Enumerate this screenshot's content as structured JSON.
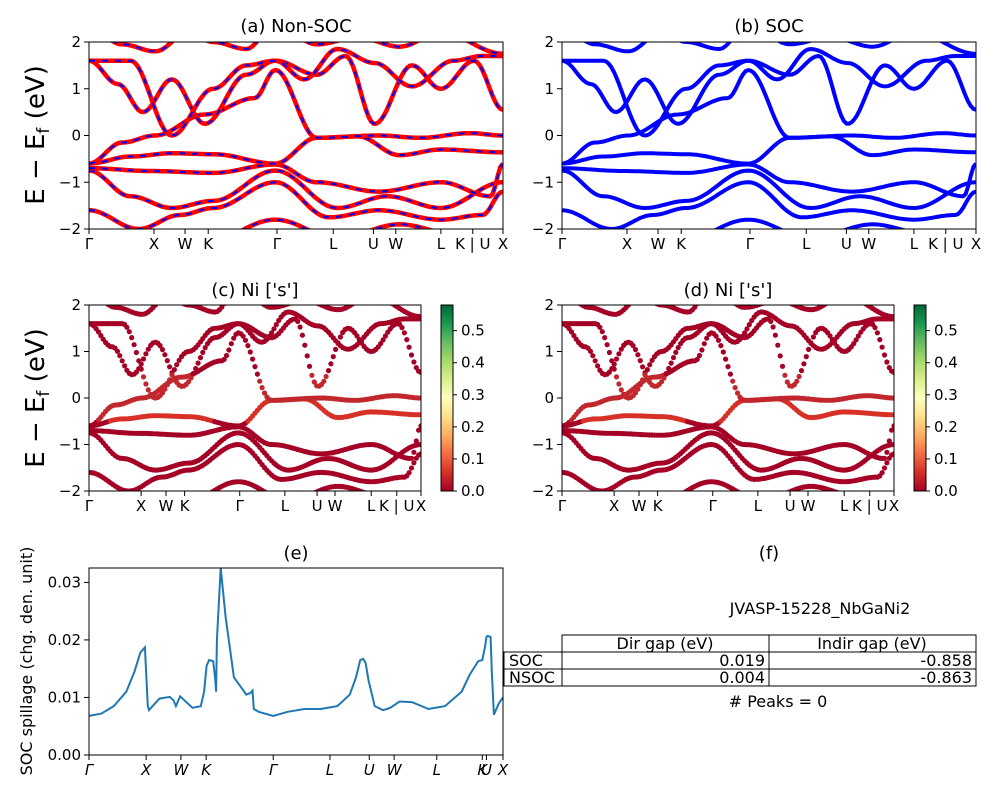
{
  "figure_id": "JVASP-15228_NbGaNi2",
  "chart_data": [
    {
      "type": "line",
      "title": "(a) Non-SOC",
      "ylabel": "$E - E_f$ (eV)",
      "ylim": [
        -2,
        2
      ],
      "yticks": [
        -2,
        -1,
        0,
        1,
        2
      ],
      "kpath": [
        "Γ",
        "X",
        "W",
        "K",
        "Γ",
        "L",
        "U",
        "W",
        "L",
        "K | U",
        "X"
      ],
      "kpos": [
        0,
        0.157,
        0.232,
        0.288,
        0.454,
        0.59,
        0.687,
        0.741,
        0.85,
        0.927,
        1.0
      ],
      "series": [
        {
          "name": "bands (red)",
          "color": "#ff0000"
        },
        {
          "name": "bands overlay (blue dashed)",
          "color": "#0000ff"
        }
      ]
    },
    {
      "type": "line",
      "title": "(b) SOC",
      "ylim": [
        -2,
        2
      ],
      "yticks": [
        -2,
        -1,
        0,
        1,
        2
      ],
      "kpath": [
        "Γ",
        "X",
        "W",
        "K",
        "Γ",
        "L",
        "U",
        "W",
        "L",
        "K | U",
        "X"
      ],
      "kpos": [
        0,
        0.157,
        0.232,
        0.288,
        0.454,
        0.59,
        0.687,
        0.741,
        0.85,
        0.927,
        1.0
      ],
      "series": [
        {
          "name": "bands",
          "color": "#0000ff"
        }
      ]
    },
    {
      "type": "scatter",
      "title": "(c)  Ni ['s']",
      "ylabel": "$E - E_f$ (eV)",
      "ylim": [
        -2,
        2
      ],
      "yticks": [
        -2,
        -1,
        0,
        1,
        2
      ],
      "kpath": [
        "Γ",
        "X",
        "W",
        "K",
        "Γ",
        "L",
        "U",
        "W",
        "L",
        "K | U",
        "X"
      ],
      "kpos": [
        0,
        0.157,
        0.232,
        0.288,
        0.454,
        0.59,
        0.687,
        0.741,
        0.85,
        0.927,
        1.0
      ],
      "colorbar": {
        "ticks": [
          "0.0",
          "0.1",
          "0.2",
          "0.3",
          "0.4",
          "0.5"
        ],
        "max": 0.58,
        "colors": [
          "#a50026",
          "#d73027",
          "#f46d43",
          "#fdae61",
          "#fee08b",
          "#ffffbf",
          "#d9ef8b",
          "#a6d96a",
          "#66bd63",
          "#1a9850",
          "#006837"
        ]
      }
    },
    {
      "type": "scatter",
      "title": "(d) Ni ['s']",
      "ylim": [
        -2,
        2
      ],
      "yticks": [
        -2,
        -1,
        0,
        1,
        2
      ],
      "kpath": [
        "Γ",
        "X",
        "W",
        "K",
        "Γ",
        "L",
        "U",
        "W",
        "L",
        "K | U",
        "X"
      ],
      "kpos": [
        0,
        0.157,
        0.232,
        0.288,
        0.454,
        0.59,
        0.687,
        0.741,
        0.85,
        0.927,
        1.0
      ],
      "colorbar": {
        "ticks": [
          "0.0",
          "0.1",
          "0.2",
          "0.3",
          "0.4",
          "0.5"
        ],
        "max": 0.58,
        "colors": [
          "#a50026",
          "#d73027",
          "#f46d43",
          "#fdae61",
          "#fee08b",
          "#ffffbf",
          "#d9ef8b",
          "#a6d96a",
          "#66bd63",
          "#1a9850",
          "#006837"
        ]
      }
    },
    {
      "type": "line",
      "title": "(e)",
      "ylabel": "SOC spillage (chg. den. unit)",
      "ylim": [
        0,
        0.0325
      ],
      "yticks": [
        "0.00",
        "0.01",
        "0.02",
        "0.03"
      ],
      "ytick_values": [
        0,
        0.01,
        0.02,
        0.03
      ],
      "kpath": [
        "Γ",
        "X",
        "W",
        "K",
        "Γ",
        "L",
        "U",
        "W",
        "L",
        "K",
        "U",
        "X"
      ],
      "kpos": [
        0,
        0.138,
        0.222,
        0.283,
        0.445,
        0.582,
        0.677,
        0.737,
        0.84,
        0.95,
        0.96,
        1.0
      ],
      "series": [
        {
          "name": "spillage",
          "color": "#1f77b4",
          "x": [
            0,
            0.03,
            0.06,
            0.09,
            0.11,
            0.124,
            0.135,
            0.142,
            0.145,
            0.17,
            0.195,
            0.204,
            0.21,
            0.22,
            0.25,
            0.27,
            0.278,
            0.284,
            0.29,
            0.3,
            0.305,
            0.307,
            0.309,
            0.318,
            0.33,
            0.35,
            0.38,
            0.39,
            0.395,
            0.398,
            0.41,
            0.445,
            0.48,
            0.52,
            0.56,
            0.6,
            0.63,
            0.645,
            0.655,
            0.662,
            0.668,
            0.675,
            0.69,
            0.71,
            0.72,
            0.73,
            0.75,
            0.78,
            0.82,
            0.86,
            0.9,
            0.92,
            0.94,
            0.95,
            0.957,
            0.96,
            0.963,
            0.97,
            0.973,
            0.978,
            0.99,
            1.0
          ],
          "y": [
            0.0068,
            0.0072,
            0.0085,
            0.011,
            0.0145,
            0.0178,
            0.0187,
            0.0085,
            0.0078,
            0.0098,
            0.0101,
            0.0095,
            0.0085,
            0.0102,
            0.0082,
            0.0085,
            0.011,
            0.0155,
            0.0165,
            0.0163,
            0.013,
            0.011,
            0.02,
            0.0325,
            0.024,
            0.0135,
            0.0105,
            0.0108,
            0.0112,
            0.008,
            0.0075,
            0.0068,
            0.0075,
            0.008,
            0.008,
            0.0085,
            0.0105,
            0.0135,
            0.0165,
            0.0167,
            0.016,
            0.013,
            0.0085,
            0.0078,
            0.008,
            0.0083,
            0.0093,
            0.0092,
            0.008,
            0.0085,
            0.011,
            0.014,
            0.0163,
            0.0165,
            0.019,
            0.0205,
            0.0207,
            0.0205,
            0.0145,
            0.007,
            0.009,
            0.01
          ]
        }
      ]
    },
    {
      "type": "table",
      "title": "(f)",
      "caption": "JVASP-15228_NbGaNi2",
      "columns": [
        "Dir gap (eV)",
        "Indir gap (eV)"
      ],
      "rows": [
        {
          "label": "SOC",
          "values": [
            "0.019",
            "-0.858"
          ]
        },
        {
          "label": "NSOC",
          "values": [
            "0.004",
            "-0.863"
          ]
        }
      ],
      "footnote": "# Peaks = 0"
    }
  ]
}
